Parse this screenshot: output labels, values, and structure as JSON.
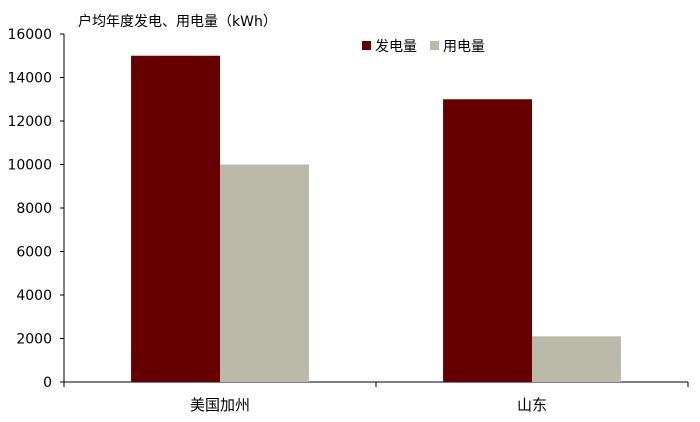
{
  "chart_data": {
    "type": "bar",
    "title": "",
    "unit_label": "户均年度发电、用电量（kWh）",
    "xlabel": "",
    "ylabel": "",
    "categories": [
      "美国加州",
      "山东"
    ],
    "series": [
      {
        "name": "发电量",
        "color": "#660000",
        "values": [
          15000,
          13000
        ]
      },
      {
        "name": "用电量",
        "color": "#bbbaa8",
        "values": [
          10000,
          2100
        ]
      }
    ],
    "ylim": [
      0,
      16000
    ],
    "yticks": [
      0,
      2000,
      4000,
      6000,
      8000,
      10000,
      12000,
      14000,
      16000
    ],
    "grid": false,
    "legend_position": "top-right"
  }
}
